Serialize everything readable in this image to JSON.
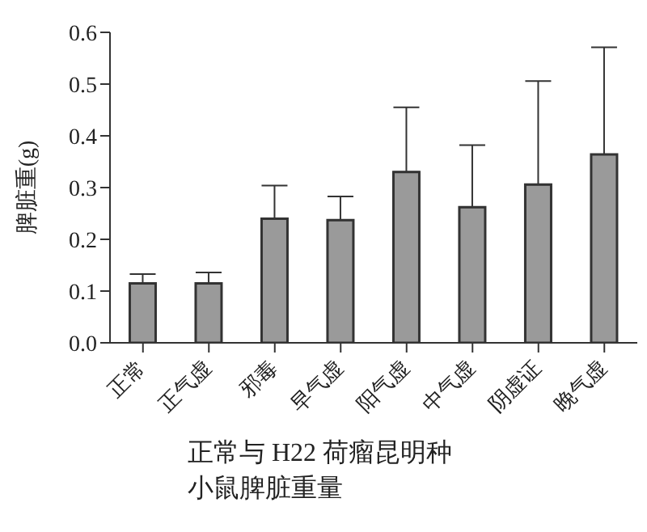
{
  "chart_data": {
    "type": "bar",
    "title": "正常与 H22 荷瘤昆明种小鼠脾脏重量",
    "ylabel": "脾脏重(g)",
    "categories": [
      "正常",
      "正气虚",
      "邪毒",
      "早气虚",
      "阳气虚",
      "中气虚",
      "阴虚证",
      "晚气虚"
    ],
    "values": [
      0.115,
      0.115,
      0.24,
      0.237,
      0.33,
      0.262,
      0.306,
      0.364
    ],
    "errors": [
      [
        0.115,
        0.133
      ],
      [
        0.115,
        0.136
      ],
      [
        0.24,
        0.304
      ],
      [
        0.237,
        0.283
      ],
      [
        0.33,
        0.455
      ],
      [
        0.262,
        0.382
      ],
      [
        0.306,
        0.506
      ],
      [
        0.364,
        0.571
      ]
    ],
    "color": "#9a9a9a",
    "ylim": [
      0,
      0.6
    ],
    "yticks": [
      {
        "value": 0,
        "label": "0.0"
      },
      0.1,
      0.2,
      0.3,
      0.4,
      0.5,
      0.6
    ],
    "grid": false,
    "legend": false
  }
}
